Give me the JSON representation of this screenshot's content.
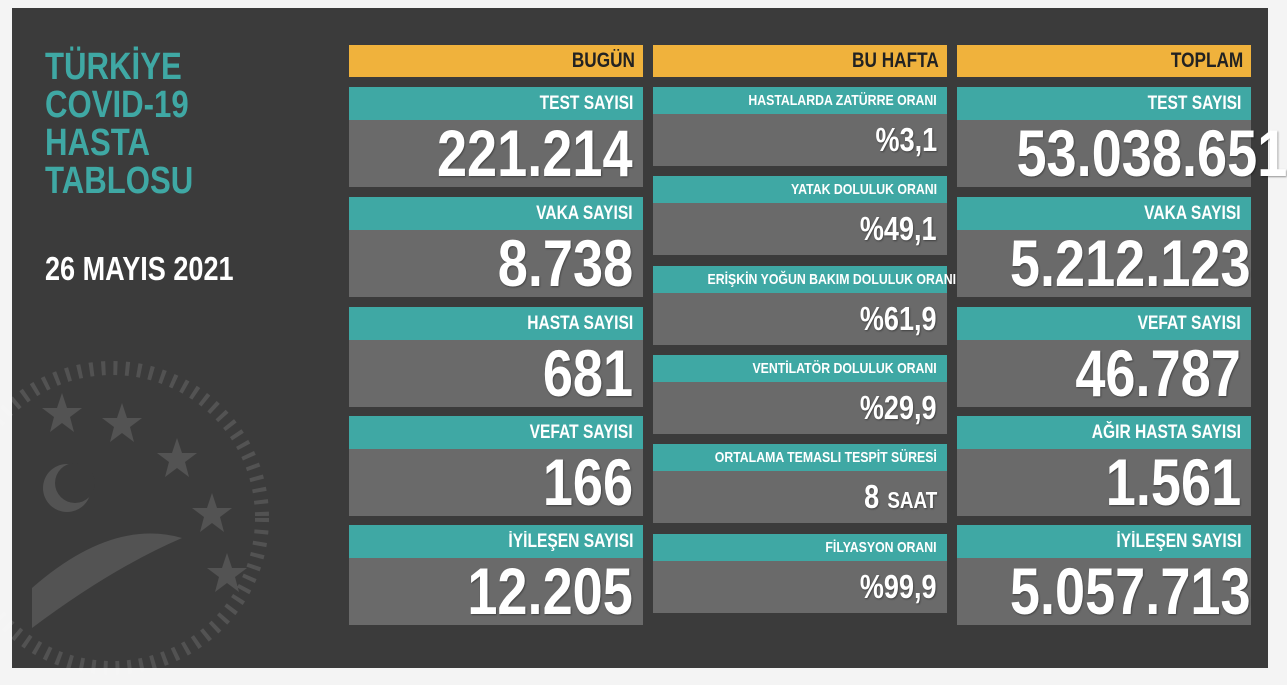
{
  "title": [
    "TÜRKİYE",
    "COVID-19",
    "HASTA",
    "TABLOSU"
  ],
  "date": "26 MAYIS 2021",
  "columns": [
    {
      "header": "BUGÜN",
      "items": [
        {
          "label": "TEST SAYISI",
          "value": "221.214"
        },
        {
          "label": "VAKA SAYISI",
          "value": "8.738"
        },
        {
          "label": "HASTA SAYISI",
          "value": "681"
        },
        {
          "label": "VEFAT SAYISI",
          "value": "166"
        },
        {
          "label": "İYİLEŞEN SAYISI",
          "value": "12.205"
        }
      ]
    },
    {
      "header": "BU HAFTA",
      "items": [
        {
          "label": "HASTALARDA ZATÜRRE ORANI",
          "value": "%3,1"
        },
        {
          "label": "YATAK DOLULUK ORANI",
          "value": "%49,1"
        },
        {
          "label": "ERİŞKİN YOĞUN BAKIM DOLULUK ORANI",
          "value": "%61,9"
        },
        {
          "label": "VENTİLATÖR DOLULUK ORANI",
          "value": "%29,9"
        },
        {
          "label": "ORTALAMA TEMASLI TESPİT SÜRESİ",
          "value": "8",
          "unit": "SAAT"
        },
        {
          "label": "FİLYASYON ORANI",
          "value": "%99,9"
        }
      ]
    },
    {
      "header": "TOPLAM",
      "items": [
        {
          "label": "TEST SAYISI",
          "value": "53.038.651"
        },
        {
          "label": "VAKA SAYISI",
          "value": "5.212.123"
        },
        {
          "label": "VEFAT SAYISI",
          "value": "46.787"
        },
        {
          "label": "AĞIR HASTA SAYISI",
          "value": "1.561"
        },
        {
          "label": "İYİLEŞEN SAYISI",
          "value": "5.057.713"
        }
      ]
    }
  ]
}
